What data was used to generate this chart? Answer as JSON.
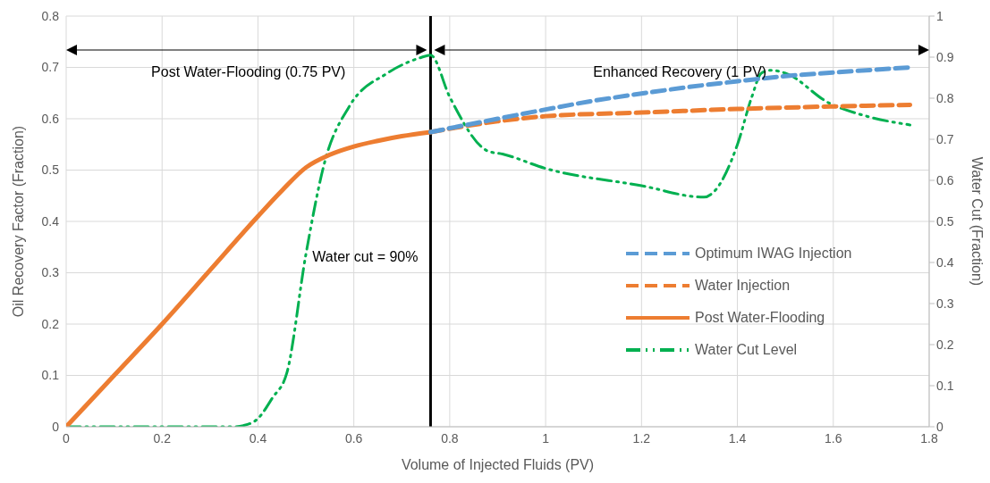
{
  "chart_data": {
    "type": "line",
    "xlabel": "Volume of Injected Fluids (PV)",
    "ylabel": "Oil Recovery Factor (Fraction)",
    "y2label": "Water Cut (Fraction)",
    "xlim": [
      0,
      1.8
    ],
    "xticks": [
      0,
      0.2,
      0.4,
      0.6,
      0.8,
      1,
      1.2,
      1.4,
      1.6,
      1.8
    ],
    "ylim": [
      0,
      0.8
    ],
    "yticks": [
      0,
      0.1,
      0.2,
      0.3,
      0.4,
      0.5,
      0.6,
      0.7,
      0.8
    ],
    "y2lim": [
      0,
      1
    ],
    "y2ticks": [
      0,
      0.1,
      0.2,
      0.3,
      0.4,
      0.5,
      0.6,
      0.7,
      0.8,
      0.9,
      1
    ],
    "grid": true,
    "legend": "right",
    "marker": "none",
    "annotations": [
      "Post Water-Flooding (0.75 PV)",
      "Enhanced Recovery (1 PV)",
      "Water cut = 90%"
    ],
    "ref_lines": [
      {
        "axis": "x",
        "value": 0.76,
        "color": "#000000"
      }
    ],
    "series": [
      {
        "name": "Optimum IWAG Injection",
        "color": "#5b9bd5",
        "line_style": "dashed",
        "x": [
          0.76,
          0.9,
          1.0,
          1.1,
          1.2,
          1.3,
          1.4,
          1.5,
          1.6,
          1.76
        ],
        "values": [
          0.574,
          0.6,
          0.618,
          0.635,
          0.649,
          0.662,
          0.673,
          0.683,
          0.69,
          0.7
        ]
      },
      {
        "name": "Water Injection",
        "color": "#ed7d31",
        "line_style": "dashed",
        "x": [
          0.76,
          0.9,
          1.0,
          1.2,
          1.4,
          1.6,
          1.76
        ],
        "values": [
          0.574,
          0.595,
          0.605,
          0.612,
          0.619,
          0.624,
          0.627
        ]
      },
      {
        "name": "Post Water-Flooding",
        "color": "#ed7d31",
        "line_style": "solid",
        "x": [
          0,
          0.1,
          0.2,
          0.3,
          0.4,
          0.45,
          0.5,
          0.55,
          0.6,
          0.65,
          0.7,
          0.76
        ],
        "values": [
          0,
          0.1,
          0.2,
          0.305,
          0.41,
          0.46,
          0.505,
          0.53,
          0.546,
          0.557,
          0.566,
          0.574
        ]
      },
      {
        "name": "Water Cut Level",
        "color": "#00b050",
        "line_style": "dotted",
        "axis": "y2",
        "x": [
          0,
          0.35,
          0.37,
          0.4,
          0.43,
          0.46,
          0.5,
          0.54,
          0.59,
          0.67,
          0.74,
          0.76,
          0.8,
          0.88,
          0.91,
          1.0,
          1.2,
          1.33,
          1.35,
          1.4,
          1.43,
          1.45,
          1.47,
          1.5,
          1.59,
          1.67,
          1.76
        ],
        "values": [
          0,
          0,
          0.003,
          0.02,
          0.07,
          0.13,
          0.42,
          0.648,
          0.779,
          0.861,
          0.899,
          0.905,
          0.803,
          0.671,
          0.664,
          0.629,
          0.587,
          0.559,
          0.571,
          0.687,
          0.803,
          0.861,
          0.868,
          0.861,
          0.789,
          0.756,
          0.735
        ]
      }
    ]
  }
}
